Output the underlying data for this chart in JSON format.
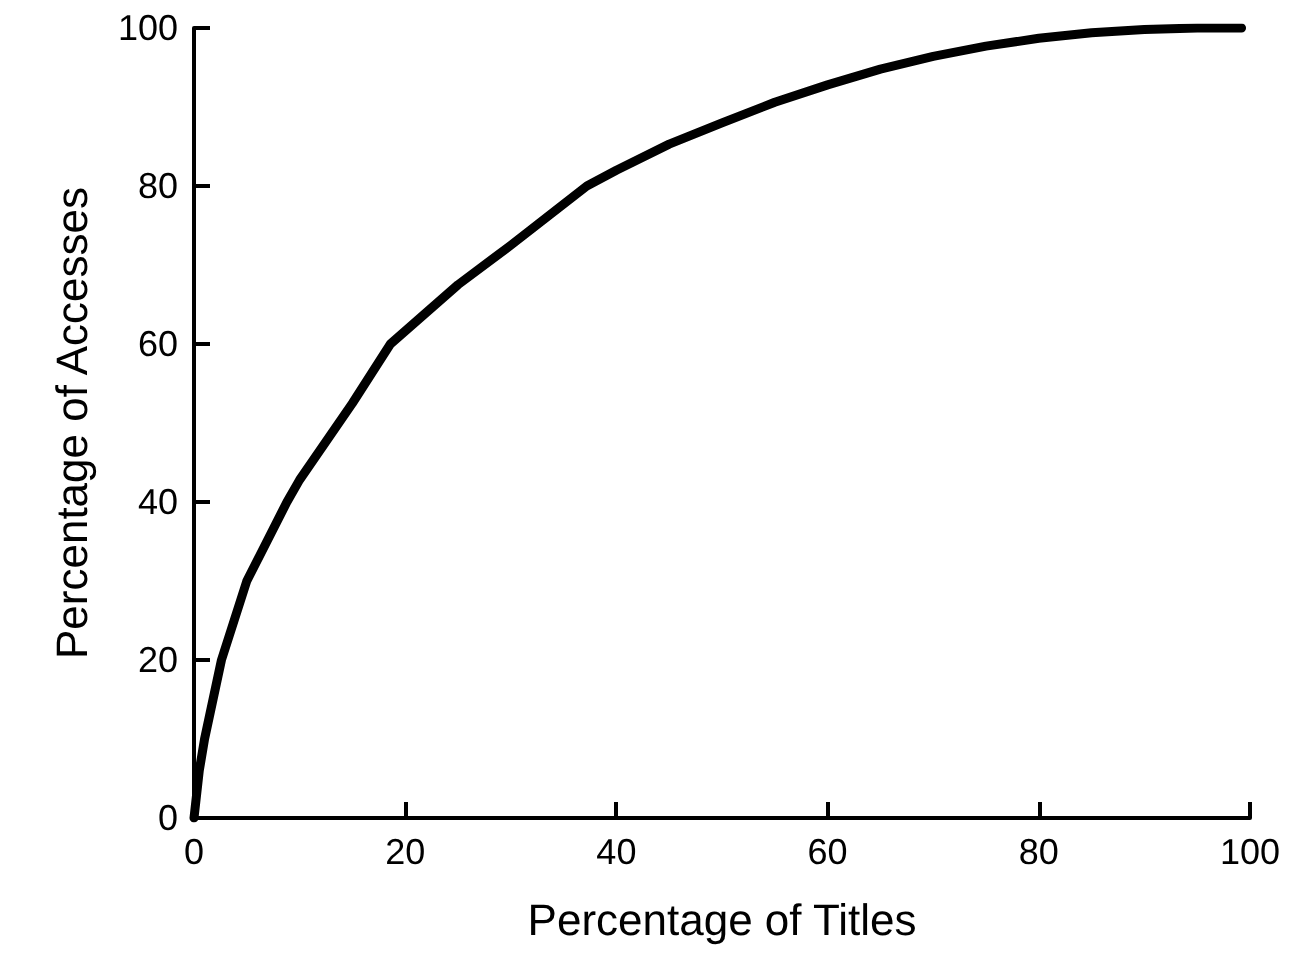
{
  "chart_data": {
    "type": "line",
    "xlabel": "Percentage of Titles",
    "ylabel": "Percentage of Accesses",
    "x": [
      0,
      0.5,
      1,
      2.6,
      5,
      8.8,
      10,
      15,
      18.6,
      25,
      30,
      37.2,
      40,
      45,
      50,
      55,
      60,
      65,
      70,
      75,
      80,
      85,
      90,
      95,
      99.2
    ],
    "series": [
      {
        "color": "#000000",
        "values": [
          0,
          6,
          10,
          20,
          30,
          40,
          42.8,
          52.5,
          60,
          67.5,
          72.5,
          80,
          82,
          85.3,
          88,
          90.6,
          92.8,
          94.8,
          96.4,
          97.7,
          98.7,
          99.4,
          99.8,
          100,
          100
        ]
      }
    ],
    "xlim": [
      0,
      100
    ],
    "ylim": [
      0,
      100
    ],
    "xticks": [
      0,
      20,
      40,
      60,
      80,
      100
    ],
    "yticks": [
      0,
      20,
      40,
      60,
      80,
      100
    ],
    "marker": "none",
    "line_style": "solid"
  }
}
